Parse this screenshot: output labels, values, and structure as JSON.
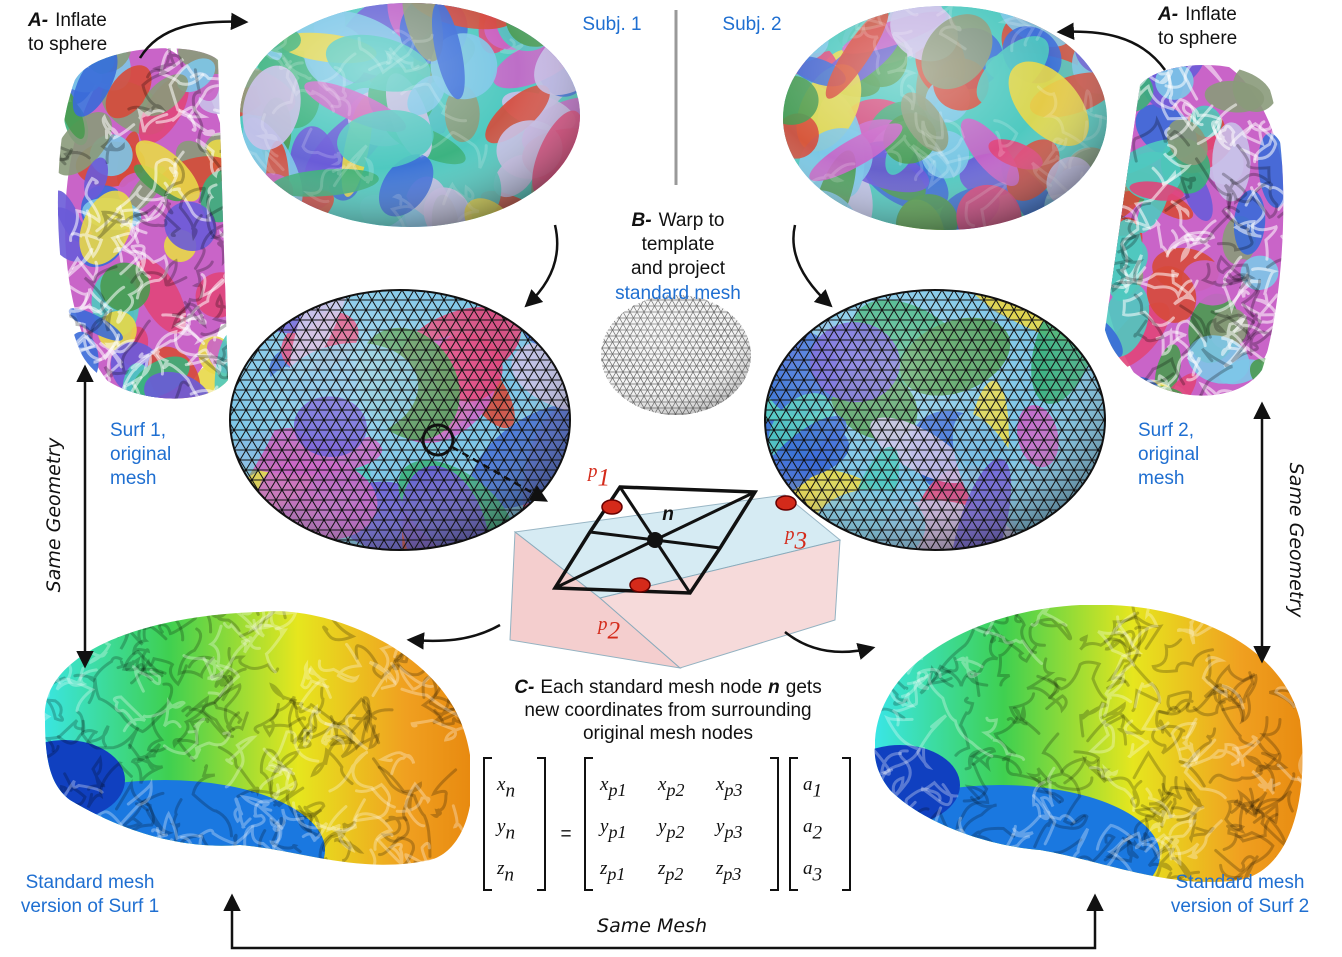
{
  "subjects": [
    "Subj. 1",
    "Subj. 2"
  ],
  "step_a_left": {
    "prefix": "A-",
    "lines": [
      "Inflate",
      "to sphere"
    ]
  },
  "step_a_right": {
    "prefix": "A-",
    "lines": [
      "Inflate",
      "to sphere"
    ]
  },
  "step_b": {
    "prefix": "B-",
    "lines": [
      "Warp to",
      "template",
      "and project"
    ],
    "highlight": "standard mesh"
  },
  "surf_left": {
    "lines": [
      "Surf 1,",
      "original",
      "mesh"
    ]
  },
  "surf_right": {
    "lines": [
      "Surf 2,",
      "original",
      "mesh"
    ]
  },
  "same_geometry_left": "Same Geometry",
  "same_geometry_right": "Same Geometry",
  "center_node": "n",
  "node_labels": [
    {
      "base": "p",
      "sub": "1"
    },
    {
      "base": "p",
      "sub": "2"
    },
    {
      "base": "p",
      "sub": "3"
    }
  ],
  "step_c": {
    "prefix": "C-",
    "lines": [
      [
        "Each standard mesh node",
        "n",
        "gets"
      ],
      [
        "new coordinates from surrounding"
      ],
      [
        "original mesh nodes"
      ]
    ]
  },
  "equation": {
    "lhs": [
      {
        "base": "x",
        "sub": "n"
      },
      {
        "base": "y",
        "sub": "n"
      },
      {
        "base": "z",
        "sub": "n"
      }
    ],
    "equals": "=",
    "matrix": [
      [
        {
          "base": "x",
          "sub": "p1"
        },
        {
          "base": "x",
          "sub": "p2"
        },
        {
          "base": "x",
          "sub": "p3"
        }
      ],
      [
        {
          "base": "y",
          "sub": "p1"
        },
        {
          "base": "y",
          "sub": "p2"
        },
        {
          "base": "y",
          "sub": "p3"
        }
      ],
      [
        {
          "base": "z",
          "sub": "p1"
        },
        {
          "base": "z",
          "sub": "p2"
        },
        {
          "base": "z",
          "sub": "p3"
        }
      ]
    ],
    "weights": [
      {
        "base": "a",
        "sub": "1"
      },
      {
        "base": "a",
        "sub": "2"
      },
      {
        "base": "a",
        "sub": "3"
      }
    ]
  },
  "bottom_left": {
    "lines": [
      "Standard mesh",
      "version of  Surf 1"
    ]
  },
  "bottom_right": {
    "lines": [
      "Standard mesh",
      "version of  Surf 2"
    ]
  },
  "same_mesh": "Same Mesh"
}
